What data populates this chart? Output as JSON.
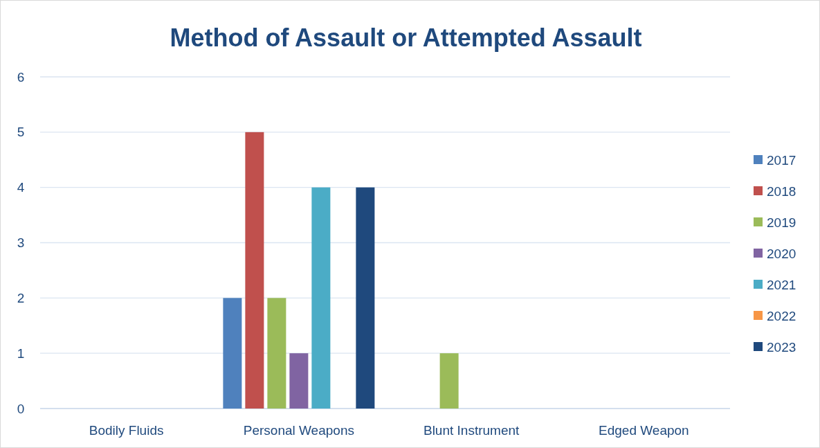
{
  "chart_data": {
    "type": "bar",
    "title": "Method of Assault or Attempted Assault",
    "categories": [
      "Bodily Fluids",
      "Personal Weapons",
      "Blunt Instrument",
      "Edged Weapon"
    ],
    "series": [
      {
        "name": "2017",
        "color": "#4f81bd",
        "values": [
          0,
          2,
          0,
          0
        ]
      },
      {
        "name": "2018",
        "color": "#c0504d",
        "values": [
          0,
          5,
          0,
          0
        ]
      },
      {
        "name": "2019",
        "color": "#9bbb59",
        "values": [
          0,
          2,
          1,
          0
        ]
      },
      {
        "name": "2020",
        "color": "#8064a2",
        "values": [
          0,
          1,
          0,
          0
        ]
      },
      {
        "name": "2021",
        "color": "#4bacc6",
        "values": [
          0,
          4,
          0,
          0
        ]
      },
      {
        "name": "2022",
        "color": "#f79646",
        "values": [
          0,
          0,
          0,
          0
        ]
      },
      {
        "name": "2023",
        "color": "#1f497d",
        "values": [
          0,
          4,
          0,
          0
        ]
      }
    ],
    "ylim": [
      0,
      6
    ],
    "yticks": [
      0,
      1,
      2,
      3,
      4,
      5,
      6
    ],
    "grid": "y",
    "legend": "right"
  }
}
